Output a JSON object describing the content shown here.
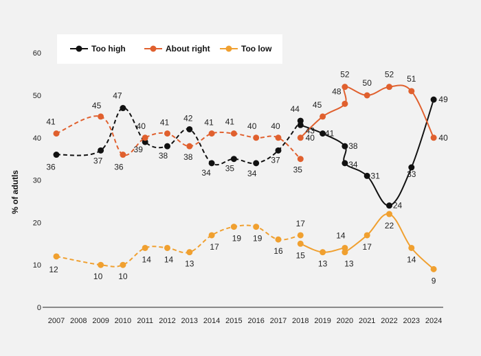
{
  "chart_data": {
    "type": "line",
    "title": "",
    "xlabel": "",
    "ylabel": "% of adutls",
    "ylim": [
      0,
      60
    ],
    "yticks": [
      0,
      10,
      20,
      30,
      40,
      50,
      60
    ],
    "grid": false,
    "legend_placement": "top-left",
    "x": [
      "2007",
      "2008",
      "2009",
      "2010",
      "2011",
      "2012",
      "2013",
      "2014",
      "2015",
      "2016",
      "2017",
      "2018",
      "2019",
      "2020",
      "2021",
      "2022",
      "2023",
      "2024"
    ],
    "series": [
      {
        "name": "Too high",
        "color": "#111111",
        "dashed_until": "2018",
        "points": [
          {
            "x": "2007",
            "y": 36
          },
          {
            "x": "2009",
            "y": 37
          },
          {
            "x": "2010",
            "y": 47
          },
          {
            "x": "2011",
            "y": 39
          },
          {
            "x": "2012",
            "y": 38
          },
          {
            "x": "2013",
            "y": 42
          },
          {
            "x": "2014",
            "y": 34
          },
          {
            "x": "2015",
            "y": 35
          },
          {
            "x": "2016",
            "y": 34
          },
          {
            "x": "2017",
            "y": 37
          },
          {
            "x": "2018",
            "y": 44
          },
          {
            "x": "2018",
            "y": 43
          },
          {
            "x": "2019",
            "y": 41
          },
          {
            "x": "2020",
            "y": 38
          },
          {
            "x": "2020",
            "y": 34
          },
          {
            "x": "2021",
            "y": 31
          },
          {
            "x": "2022",
            "y": 24
          },
          {
            "x": "2023",
            "y": 33
          },
          {
            "x": "2024",
            "y": 49
          }
        ]
      },
      {
        "name": "About right",
        "color": "#e0602e",
        "dashed_until": "2018",
        "points": [
          {
            "x": "2007",
            "y": 41
          },
          {
            "x": "2009",
            "y": 45
          },
          {
            "x": "2010",
            "y": 36
          },
          {
            "x": "2011",
            "y": 40
          },
          {
            "x": "2012",
            "y": 41
          },
          {
            "x": "2013",
            "y": 38
          },
          {
            "x": "2014",
            "y": 41
          },
          {
            "x": "2015",
            "y": 41
          },
          {
            "x": "2016",
            "y": 40
          },
          {
            "x": "2017",
            "y": 40
          },
          {
            "x": "2018",
            "y": 35
          },
          {
            "x": "2018",
            "y": 40
          },
          {
            "x": "2019",
            "y": 45
          },
          {
            "x": "2020",
            "y": 48
          },
          {
            "x": "2020",
            "y": 52
          },
          {
            "x": "2021",
            "y": 50
          },
          {
            "x": "2022",
            "y": 52
          },
          {
            "x": "2023",
            "y": 51
          },
          {
            "x": "2024",
            "y": 40
          }
        ]
      },
      {
        "name": "Too low",
        "color": "#f0a030",
        "dashed_until": "2018",
        "points": [
          {
            "x": "2007",
            "y": 12
          },
          {
            "x": "2009",
            "y": 10
          },
          {
            "x": "2010",
            "y": 10
          },
          {
            "x": "2011",
            "y": 14
          },
          {
            "x": "2012",
            "y": 14
          },
          {
            "x": "2013",
            "y": 13
          },
          {
            "x": "2014",
            "y": 17
          },
          {
            "x": "2015",
            "y": 19
          },
          {
            "x": "2016",
            "y": 19
          },
          {
            "x": "2017",
            "y": 16
          },
          {
            "x": "2018",
            "y": 17
          },
          {
            "x": "2018",
            "y": 15
          },
          {
            "x": "2019",
            "y": 13
          },
          {
            "x": "2020",
            "y": 14
          },
          {
            "x": "2020",
            "y": 13
          },
          {
            "x": "2021",
            "y": 17
          },
          {
            "x": "2022",
            "y": 22
          },
          {
            "x": "2023",
            "y": 14
          },
          {
            "x": "2024",
            "y": 9
          }
        ]
      }
    ]
  }
}
